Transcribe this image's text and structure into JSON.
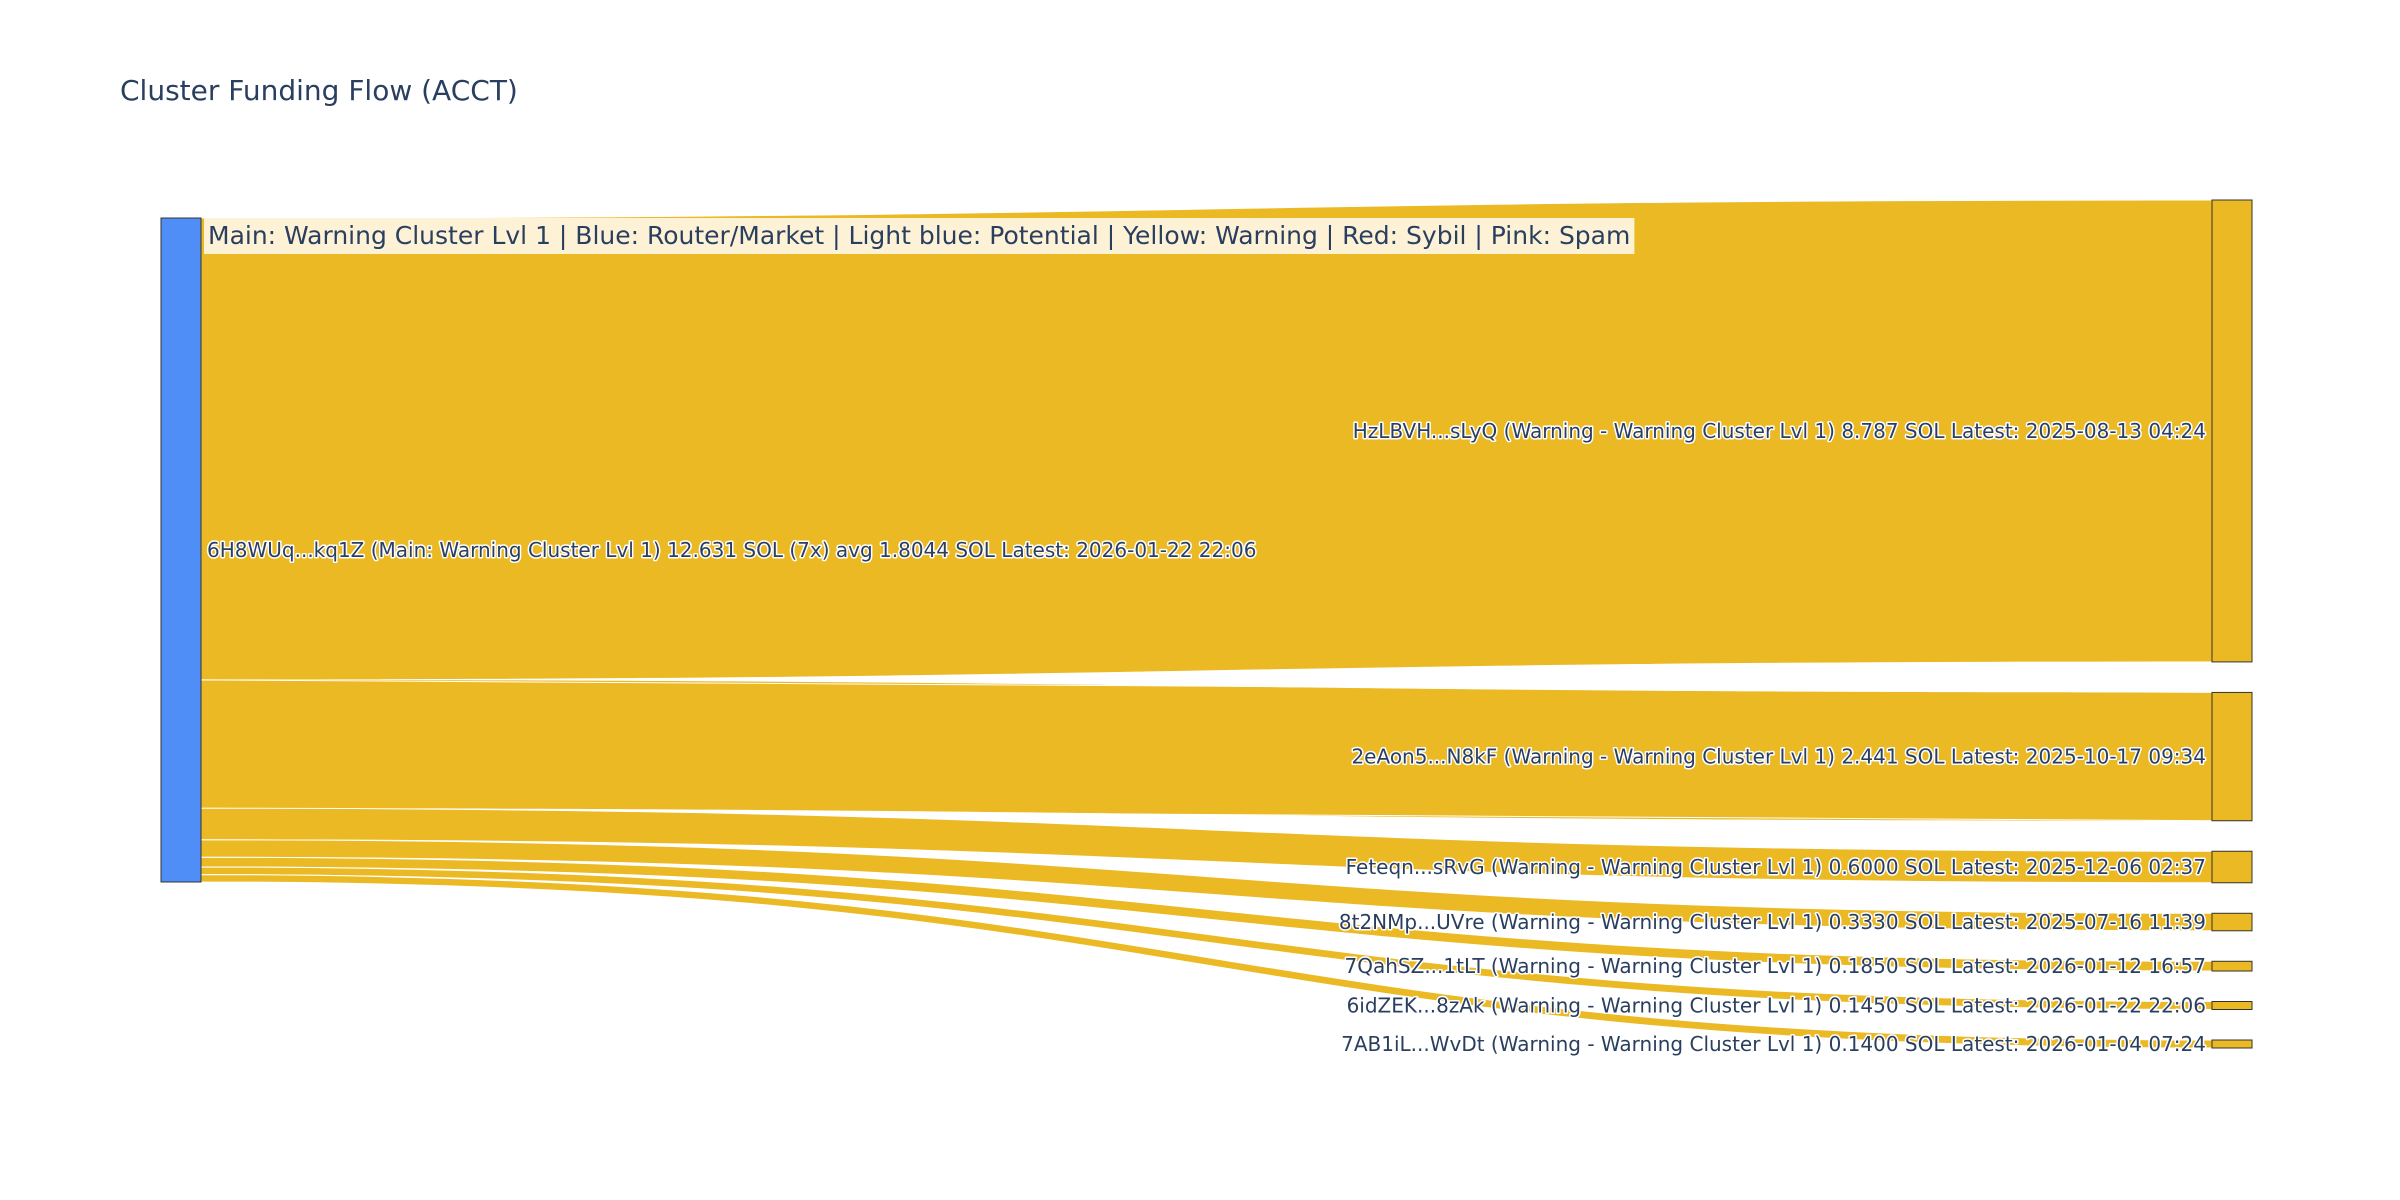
{
  "chart_data": {
    "type": "sankey",
    "title": "Cluster Funding Flow (ACCT)",
    "annotation": "Main: Warning Cluster Lvl 1  |  Blue: Router/Market | Light blue: Potential | Yellow: Warning | Red: Sybil | Pink: Spam",
    "source": {
      "label": "6H8WUq...kq1Z (Main: Warning Cluster Lvl 1) 12.631 SOL (7x) avg 1.8044 SOL Latest: 2026-01-22 22:06",
      "color": "#4f8ef7",
      "total": 12.631
    },
    "targets": [
      {
        "label": "HzLBVH...sLyQ (Warning - Warning Cluster Lvl 1) 8.787 SOL Latest: 2025-08-13 04:24",
        "value": 8.787,
        "color": "#ebb923"
      },
      {
        "label": "2eAon5...N8kF (Warning - Warning Cluster Lvl 1) 2.441 SOL Latest: 2025-10-17 09:34",
        "value": 2.441,
        "color": "#ebb923"
      },
      {
        "label": "Feteqn...sRvG (Warning - Warning Cluster Lvl 1) 0.6000 SOL Latest: 2025-12-06 02:37",
        "value": 0.6,
        "color": "#ebb923"
      },
      {
        "label": "8t2NMp...UVre (Warning - Warning Cluster Lvl 1) 0.3330 SOL Latest: 2025-07-16 11:39",
        "value": 0.333,
        "color": "#ebb923"
      },
      {
        "label": "7QahSZ...1tLT (Warning - Warning Cluster Lvl 1) 0.1850 SOL Latest: 2026-01-12 16:57",
        "value": 0.185,
        "color": "#ebb923"
      },
      {
        "label": "6idZEK...8zAk (Warning - Warning Cluster Lvl 1) 0.1450 SOL Latest: 2026-01-22 22:06",
        "value": 0.145,
        "color": "#ebb923"
      },
      {
        "label": "7AB1iL...WvDt (Warning - Warning Cluster Lvl 1) 0.1400 SOL Latest: 2026-01-04 07:24",
        "value": 0.14,
        "color": "#ebb923"
      }
    ],
    "link_color": "#ebb923",
    "annotation_bg": "#fdf1d6"
  }
}
